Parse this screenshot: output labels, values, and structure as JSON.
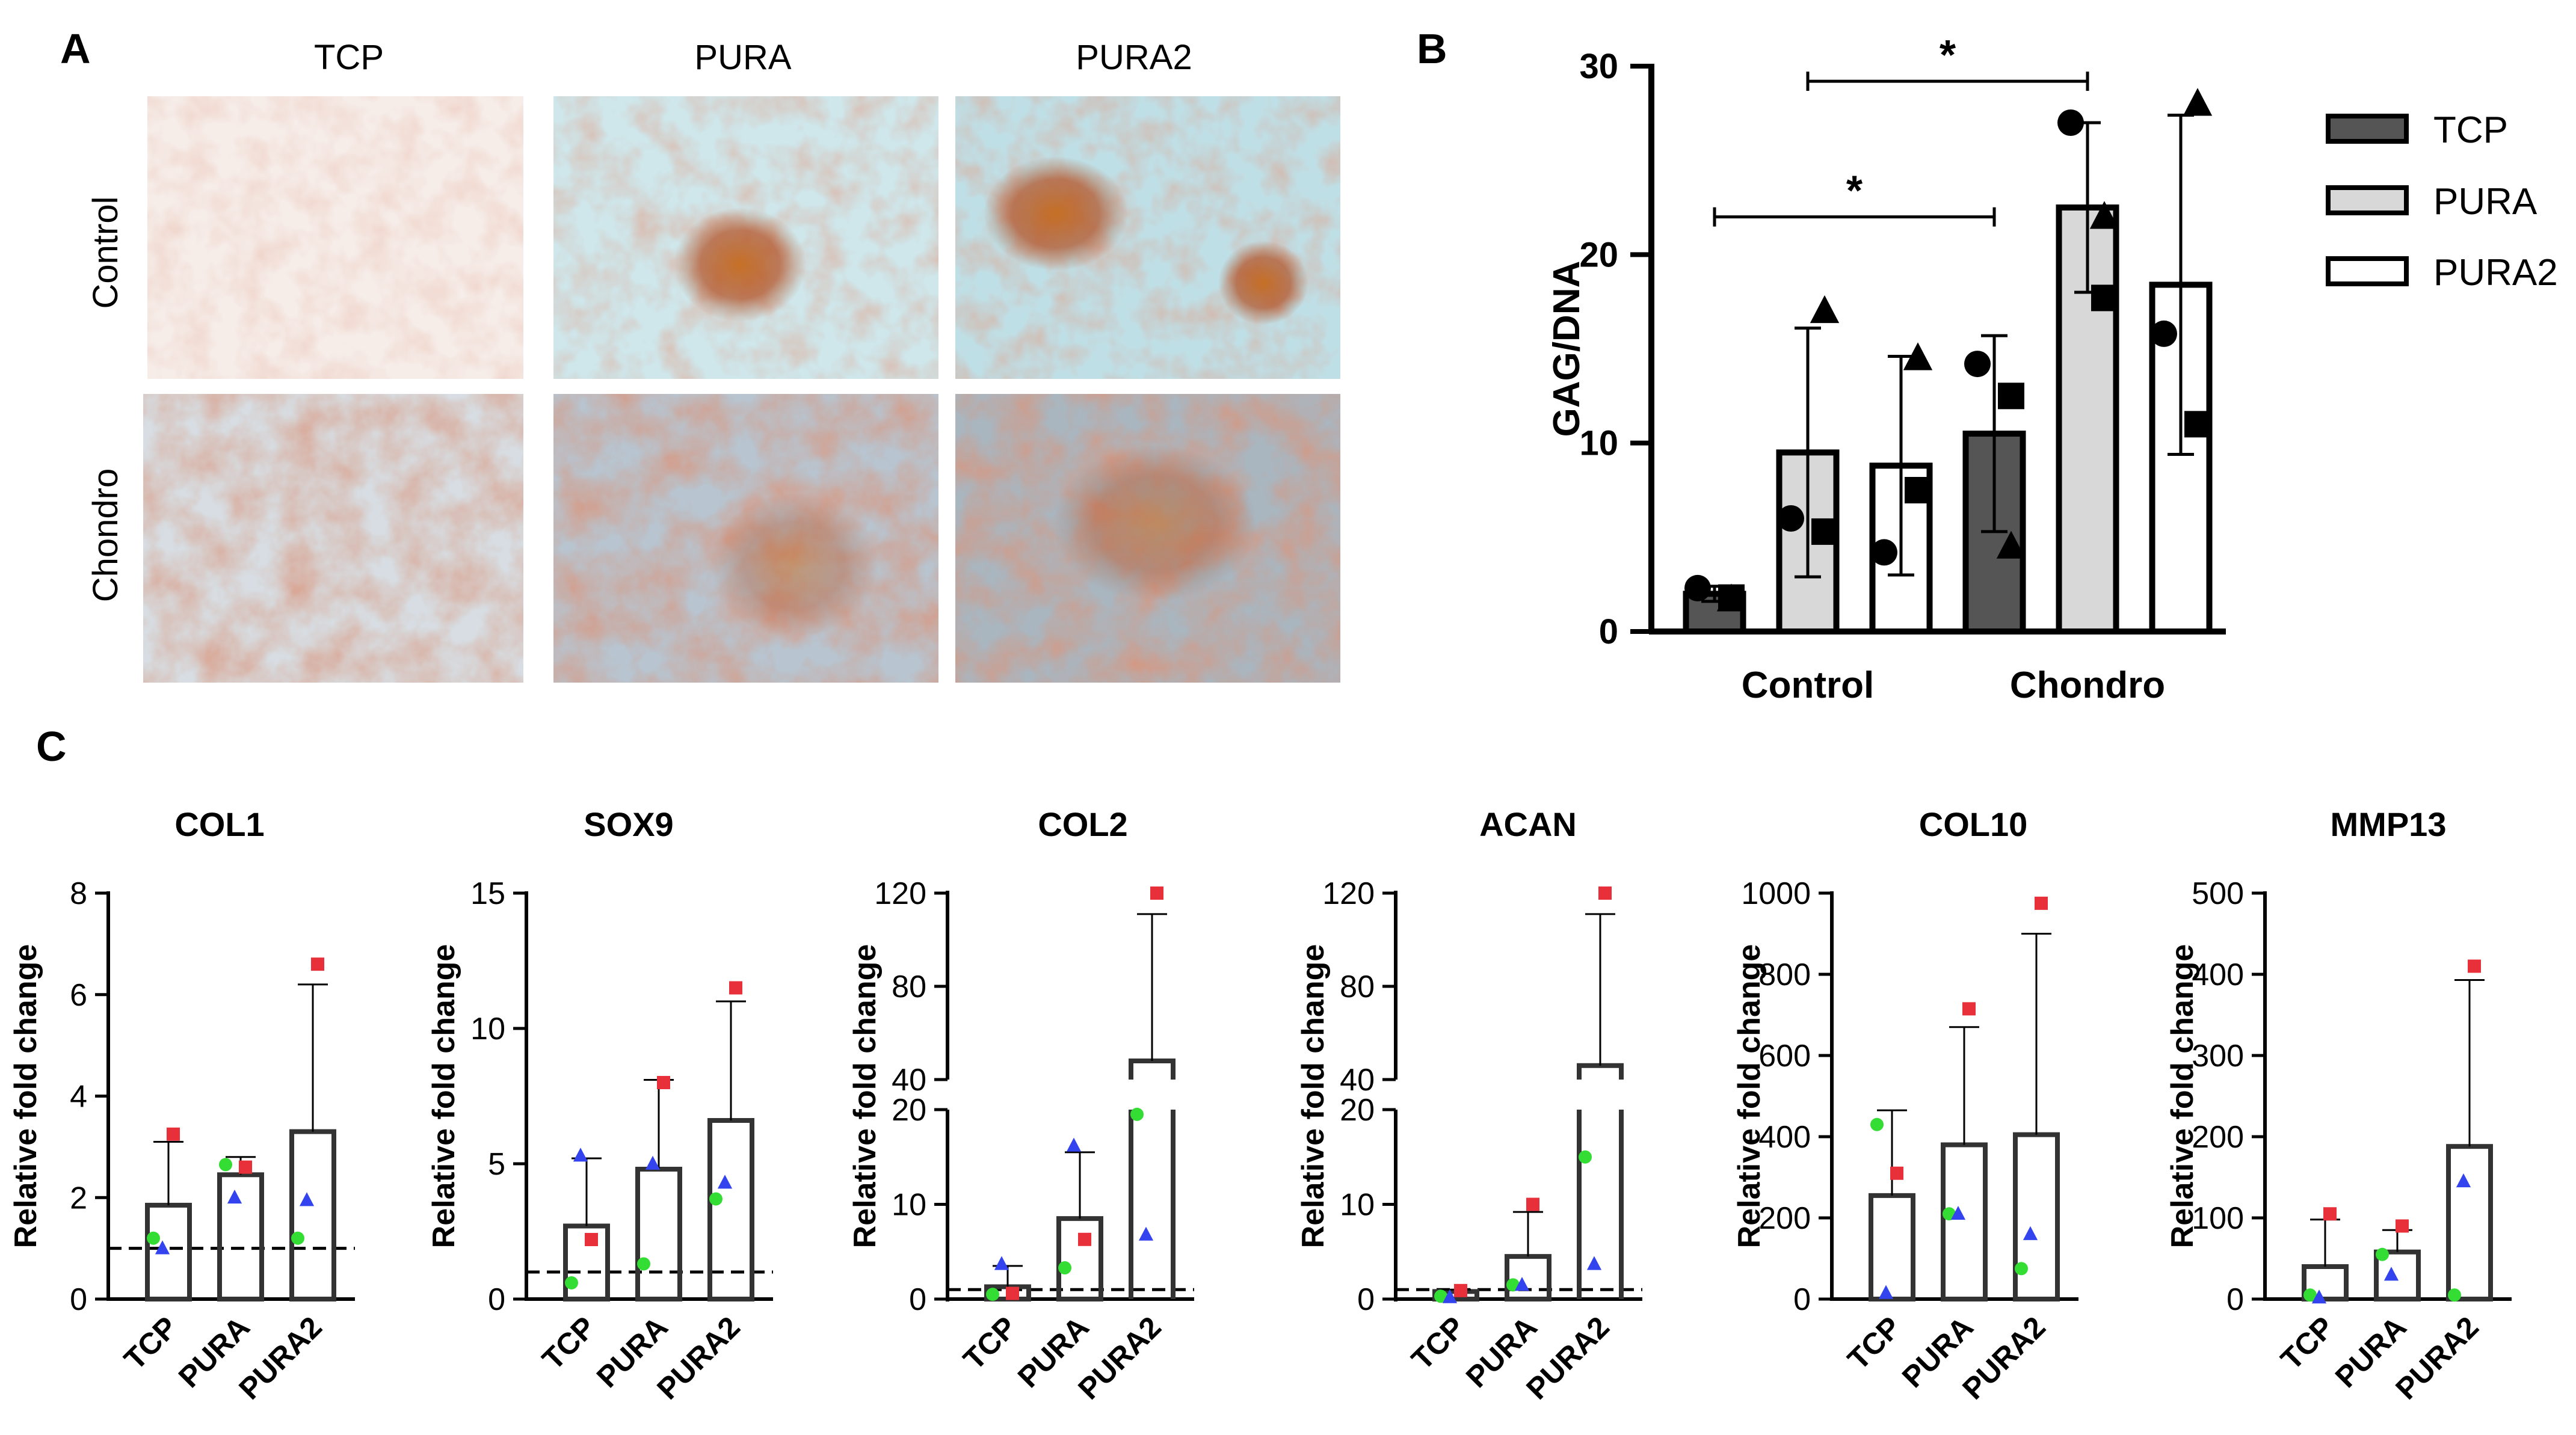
{
  "panels": {
    "A": {
      "letter": "A",
      "columns": [
        "TCP",
        "PURA",
        "PURA2"
      ],
      "rows": [
        "Control",
        "Chondro"
      ]
    },
    "B": {
      "letter": "B"
    },
    "C": {
      "letter": "C"
    }
  },
  "colors": {
    "tcp": "#555555",
    "pura": "#d8d8d8",
    "pura2": "#ffffff",
    "marker_red": "#e8303a",
    "marker_green": "#33dd33",
    "marker_blue": "#3344ee"
  },
  "chart_data": [
    {
      "id": "gag",
      "type": "bar",
      "title": "",
      "ylabel": "GAG/DNA",
      "categories": [
        "Control",
        "Chondro"
      ],
      "ylim": [
        0,
        30
      ],
      "yticks": [
        0,
        10,
        20,
        30
      ],
      "legend": {
        "placement": "right",
        "entries": [
          "TCP",
          "PURA",
          "PURA2"
        ]
      },
      "series": [
        {
          "name": "TCP",
          "values": [
            2.0,
            10.5
          ],
          "err": [
            0.4,
            5.2
          ],
          "points": [
            [
              2.3,
              1.8,
              1.7
            ],
            [
              14.2,
              12.5,
              4.5
            ]
          ]
        },
        {
          "name": "PURA",
          "values": [
            9.5,
            22.5
          ],
          "err": [
            6.6,
            4.5
          ],
          "points": [
            [
              6.0,
              5.3,
              17.0
            ],
            [
              27.0,
              17.7,
              22.0
            ]
          ]
        },
        {
          "name": "PURA2",
          "values": [
            8.8,
            18.4
          ],
          "err": [
            5.8,
            9.0
          ],
          "points": [
            [
              4.2,
              7.5,
              14.5
            ],
            [
              15.8,
              11.0,
              28.0
            ]
          ]
        }
      ],
      "significance": [
        {
          "label": "*",
          "from": "Control TCP",
          "to": "Chondro TCP"
        },
        {
          "label": "*",
          "from": "Control PURA",
          "to": "Chondro PURA"
        }
      ]
    },
    {
      "id": "col1",
      "type": "bar",
      "title": "COL1",
      "ylabel": "Relative fold change",
      "categories": [
        "TCP",
        "PURA",
        "PURA2"
      ],
      "ylim": [
        0,
        8
      ],
      "yticks": [
        0,
        2,
        4,
        6,
        8
      ],
      "reference_line": 1,
      "values": [
        1.85,
        2.45,
        3.3
      ],
      "err_upper": [
        3.1,
        2.8,
        6.2
      ],
      "points": {
        "red": [
          3.25,
          2.6,
          6.6
        ],
        "green": [
          1.2,
          2.65,
          1.2
        ],
        "blue": [
          1.0,
          2.0,
          1.95
        ]
      }
    },
    {
      "id": "sox9",
      "type": "bar",
      "title": "SOX9",
      "ylabel": "Relative fold change",
      "categories": [
        "TCP",
        "PURA",
        "PURA2"
      ],
      "ylim": [
        0,
        15
      ],
      "yticks": [
        0,
        5,
        10,
        15
      ],
      "reference_line": 1,
      "values": [
        2.7,
        4.8,
        6.6
      ],
      "err_upper": [
        5.2,
        8.1,
        11.0
      ],
      "points": {
        "red": [
          2.2,
          8.0,
          11.5
        ],
        "green": [
          0.6,
          1.3,
          3.7
        ],
        "blue": [
          5.3,
          5.0,
          4.3
        ]
      }
    },
    {
      "id": "col2",
      "type": "bar",
      "title": "COL2",
      "ylabel": "Relative fold change",
      "categories": [
        "TCP",
        "PURA",
        "PURA2"
      ],
      "broken_axis": true,
      "yticks": [
        0,
        10,
        20,
        40,
        80,
        120
      ],
      "reference_line": 1,
      "values": [
        1.3,
        8.5,
        48
      ],
      "err_upper": [
        3.5,
        15.5,
        111
      ],
      "points": {
        "red": [
          0.6,
          6.3,
          120
        ],
        "green": [
          0.5,
          3.3,
          19.5
        ],
        "blue": [
          3.7,
          16.2,
          6.8
        ]
      }
    },
    {
      "id": "acan",
      "type": "bar",
      "title": "ACAN",
      "ylabel": "Relative fold change",
      "categories": [
        "TCP",
        "PURA",
        "PURA2"
      ],
      "broken_axis": true,
      "yticks": [
        0,
        10,
        20,
        40,
        80,
        120
      ],
      "reference_line": 1,
      "values": [
        0.8,
        4.5,
        46
      ],
      "err_upper": [
        1.0,
        9.2,
        111
      ],
      "points": {
        "red": [
          0.9,
          10.0,
          120
        ],
        "green": [
          0.3,
          1.5,
          15.0
        ],
        "blue": [
          0.2,
          1.5,
          3.7
        ]
      }
    },
    {
      "id": "col10",
      "type": "bar",
      "title": "COL10",
      "ylabel": "Relative fold change",
      "categories": [
        "TCP",
        "PURA",
        "PURA2"
      ],
      "ylim": [
        0,
        1000
      ],
      "yticks": [
        0,
        200,
        400,
        600,
        800,
        1000
      ],
      "values": [
        255,
        380,
        405
      ],
      "err_upper": [
        465,
        670,
        900
      ],
      "points": {
        "red": [
          310,
          715,
          975
        ],
        "green": [
          430,
          210,
          75
        ],
        "blue": [
          15,
          210,
          160
        ]
      }
    },
    {
      "id": "mmp13",
      "type": "bar",
      "title": "MMP13",
      "ylabel": "Relative fold change",
      "categories": [
        "TCP",
        "PURA",
        "PURA2"
      ],
      "ylim": [
        0,
        500
      ],
      "yticks": [
        0,
        100,
        200,
        300,
        400,
        500
      ],
      "values": [
        40,
        58,
        188
      ],
      "err_upper": [
        98,
        85,
        393
      ],
      "points": {
        "red": [
          105,
          90,
          410
        ],
        "green": [
          5,
          55,
          5
        ],
        "blue": [
          2,
          30,
          145
        ]
      }
    }
  ]
}
